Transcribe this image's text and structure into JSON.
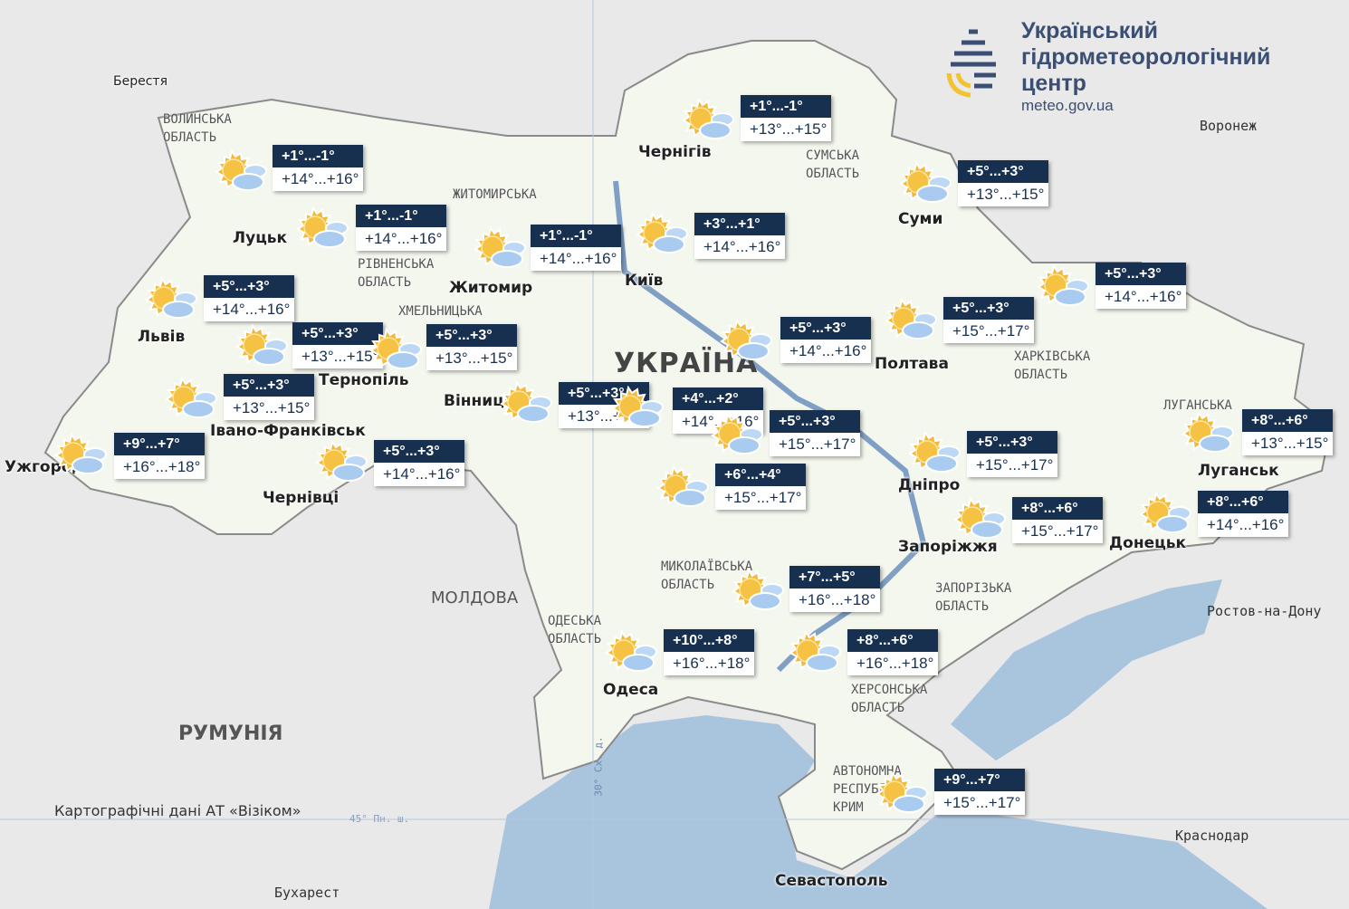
{
  "header": {
    "org_name_lines": [
      "Український",
      "гідрометеорологічний",
      "центр"
    ],
    "url": "meteo.gov.ua"
  },
  "credit": "Картографічні дані АТ «Візіком»",
  "grid_labels": {
    "lat": "45° Пн. ш.",
    "lon": "30° Сх. д."
  },
  "countries": {
    "ukraine": "УКРАЇНА",
    "moldova": "МОЛДОВА",
    "romania": "РУМУНІЯ"
  },
  "cities": [
    "Берестя",
    "Луцьк",
    "Львів",
    "Тернопіль",
    "Івано-Франківськ",
    "Ужгород",
    "Чернівці",
    "Житомир",
    "Київ",
    "Чернігів",
    "Суми",
    "Полтава",
    "Вінниця",
    "Дніпро",
    "Запоріжжя",
    "Донецьк",
    "Луганськ",
    "Одеса",
    "Севастополь",
    "Бухарест",
    "Воронеж",
    "Краснодар",
    "Ростов-на-Дону"
  ],
  "regions": [
    "ВОЛИНСЬКА ОБЛАСТЬ",
    "РІВНЕНСЬКА ОБЛАСТЬ",
    "ЖИТОМИРСЬКА",
    "ХМЕЛЬНИЦЬКА",
    "СУМСЬКА ОБЛАСТЬ",
    "ХАРКІВСЬКА ОБЛАСТЬ",
    "ЛУГАНСЬКА",
    "МИКОЛАЇВСЬКА ОБЛАСТЬ",
    "ОДЕСЬКА ОБЛАСТЬ",
    "ЗАПОРІЗЬКА ОБЛАСТЬ",
    "ХЕРСОНСЬКА ОБЛАСТЬ",
    "АВТОНОМНА РЕСПУБЛІКА КРИМ"
  ],
  "weather_icon": "sun-behind-clouds-icon",
  "colors": {
    "box_header": "#17304f",
    "sea": "#a9c4dd",
    "land": "#f4f7ee",
    "outside": "#e9e9e9"
  },
  "forecasts": [
    {
      "night": "+1°...-1°",
      "day": "+14°...+16°"
    },
    {
      "night": "+1°...-1°",
      "day": "+14°...+16°"
    },
    {
      "night": "+1°...-1°",
      "day": "+14°...+16°"
    },
    {
      "night": "+3°...+1°",
      "day": "+14°...+16°"
    },
    {
      "night": "+1°...-1°",
      "day": "+13°...+15°"
    },
    {
      "night": "+5°...+3°",
      "day": "+13°...+15°"
    },
    {
      "night": "+5°...+3°",
      "day": "+14°...+16°"
    },
    {
      "night": "+5°...+3°",
      "day": "+13°...+15°"
    },
    {
      "night": "+5°...+3°",
      "day": "+13°...+15°"
    },
    {
      "night": "+5°...+3°",
      "day": "+13°...+15°"
    },
    {
      "night": "+9°...+7°",
      "day": "+16°...+18°"
    },
    {
      "night": "+5°...+3°",
      "day": "+14°...+16°"
    },
    {
      "night": "+5°...+3°",
      "day": "+13°...+15°"
    },
    {
      "night": "+4°...+2°",
      "day": "+14°...+16°"
    },
    {
      "night": "+5°...+3°",
      "day": "+15°...+17°"
    },
    {
      "night": "+6°...+4°",
      "day": "+15°...+17°"
    },
    {
      "night": "+5°...+3°",
      "day": "+14°...+16°"
    },
    {
      "night": "+5°...+3°",
      "day": "+15°...+17°"
    },
    {
      "night": "+5°...+3°",
      "day": "+14°...+16°"
    },
    {
      "night": "+8°...+6°",
      "day": "+13°...+15°"
    },
    {
      "night": "+5°...+3°",
      "day": "+15°...+17°"
    },
    {
      "night": "+8°...+6°",
      "day": "+15°...+17°"
    },
    {
      "night": "+8°...+6°",
      "day": "+14°...+16°"
    },
    {
      "night": "+7°...+5°",
      "day": "+16°...+18°"
    },
    {
      "night": "+10°...+8°",
      "day": "+16°...+18°"
    },
    {
      "night": "+8°...+6°",
      "day": "+16°...+18°"
    },
    {
      "night": "+9°...+7°",
      "day": "+15°...+17°"
    }
  ]
}
